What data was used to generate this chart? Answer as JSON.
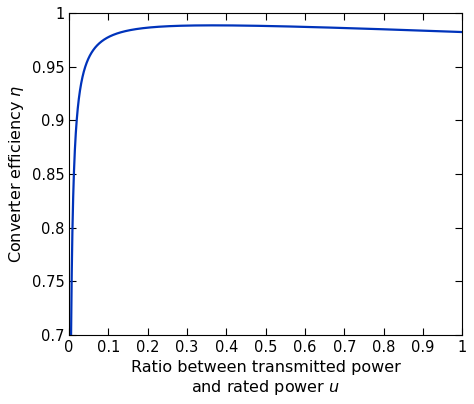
{
  "xlim": [
    0,
    1
  ],
  "ylim": [
    0.7,
    1.0
  ],
  "xticks": [
    0,
    0.1,
    0.2,
    0.3,
    0.4,
    0.5,
    0.6,
    0.7,
    0.8,
    0.9,
    1.0
  ],
  "yticks": [
    0.7,
    0.75,
    0.8,
    0.85,
    0.9,
    0.95,
    1.0
  ],
  "xlabel_line1": "Ratio between transmitted power",
  "xlabel_line2": "and rated power ",
  "ylabel_text": "Converter efficiency ",
  "line_color": "#0033BB",
  "line_width": 1.6,
  "background_color": "#ffffff",
  "a_coeff": 0.00214,
  "b_coeff": 0.016,
  "n_points": 3000,
  "figure_width": 4.74,
  "figure_height": 4.04,
  "dpi": 100,
  "tick_fontsize": 10.5,
  "label_fontsize": 11.5
}
